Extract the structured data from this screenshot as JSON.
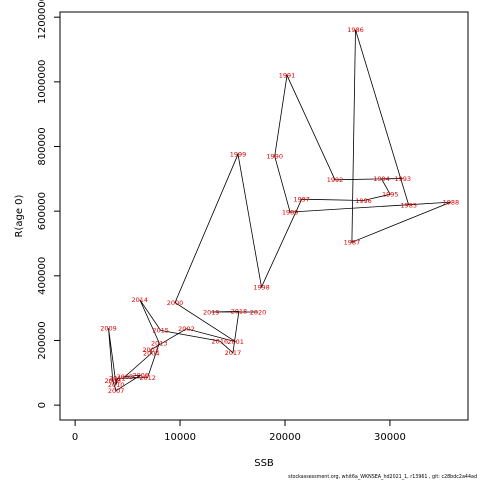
{
  "chart_data": {
    "type": "scatter",
    "xlabel": "SSB",
    "ylabel": "R(age 0)",
    "xlim": [
      -1440,
      37440
    ],
    "ylim": [
      -46000,
      1216000
    ],
    "xticks": [
      0,
      10000,
      20000,
      30000
    ],
    "yticks": [
      0,
      200000,
      400000,
      600000,
      800000,
      1000000,
      1200000
    ],
    "grid": false,
    "legend": "none",
    "line_color": "#000000",
    "label_color": "#e00000",
    "footnote": "stockassessment.org, whit6a_WKNSEA_hd2021_1, r13961 , git: c28bdc2a44ad",
    "points": [
      {
        "year": "1985",
        "x": 31790,
        "y": 619000
      },
      {
        "year": "1986",
        "x": 26720,
        "y": 1161000
      },
      {
        "year": "1987",
        "x": 26380,
        "y": 504000
      },
      {
        "year": "1988",
        "x": 35810,
        "y": 628000
      },
      {
        "year": "1989",
        "x": 20490,
        "y": 597000
      },
      {
        "year": "1990",
        "x": 19020,
        "y": 770000
      },
      {
        "year": "1991",
        "x": 20190,
        "y": 1020000
      },
      {
        "year": "1992",
        "x": 24770,
        "y": 697000
      },
      {
        "year": "1993",
        "x": 31220,
        "y": 701000
      },
      {
        "year": "1994",
        "x": 29200,
        "y": 700000
      },
      {
        "year": "1995",
        "x": 30030,
        "y": 652000
      },
      {
        "year": "1996",
        "x": 27480,
        "y": 633000
      },
      {
        "year": "1997",
        "x": 21590,
        "y": 637000
      },
      {
        "year": "1998",
        "x": 17760,
        "y": 365000
      },
      {
        "year": "1999",
        "x": 15520,
        "y": 776000
      },
      {
        "year": "2000",
        "x": 9520,
        "y": 317000
      },
      {
        "year": "2001",
        "x": 15300,
        "y": 196000
      },
      {
        "year": "2002",
        "x": 10610,
        "y": 236000
      },
      {
        "year": "2003",
        "x": 7200,
        "y": 171000
      },
      {
        "year": "2004",
        "x": 7260,
        "y": 160000
      },
      {
        "year": "2005",
        "x": 4740,
        "y": 88000
      },
      {
        "year": "2006",
        "x": 6240,
        "y": 93000
      },
      {
        "year": "2007",
        "x": 3910,
        "y": 45000
      },
      {
        "year": "2008",
        "x": 3590,
        "y": 75000
      },
      {
        "year": "2009",
        "x": 3180,
        "y": 238000
      },
      {
        "year": "2010",
        "x": 3910,
        "y": 63000
      },
      {
        "year": "2011",
        "x": 4020,
        "y": 83000
      },
      {
        "year": "2012",
        "x": 6910,
        "y": 85000
      },
      {
        "year": "2013",
        "x": 8020,
        "y": 192000
      },
      {
        "year": "2014",
        "x": 6160,
        "y": 326000
      },
      {
        "year": "2015",
        "x": 8150,
        "y": 231000
      },
      {
        "year": "2016",
        "x": 13790,
        "y": 198000
      },
      {
        "year": "2017",
        "x": 15040,
        "y": 162000
      },
      {
        "year": "2018",
        "x": 15610,
        "y": 290000
      },
      {
        "year": "2019",
        "x": 12970,
        "y": 288000
      },
      {
        "year": "2020",
        "x": 17430,
        "y": 288000
      }
    ]
  }
}
